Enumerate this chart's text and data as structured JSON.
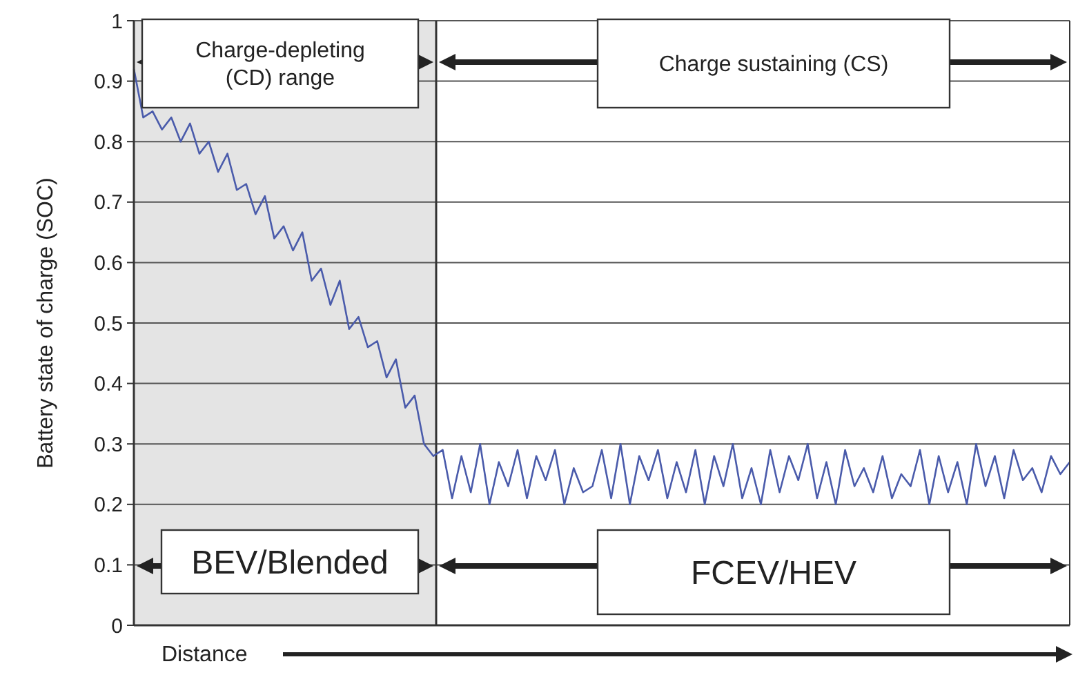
{
  "chart_data": {
    "type": "line",
    "xlabel": "Distance",
    "ylabel": "Battery state of charge (SOC)",
    "ylim": [
      0,
      1
    ],
    "yticks": [
      0,
      0.1,
      0.2,
      0.3,
      0.4,
      0.5,
      0.6,
      0.7,
      0.8,
      0.9,
      1
    ],
    "grid": "y",
    "categories": [
      null,
      null,
      null,
      null,
      null,
      null,
      null,
      null,
      null,
      null,
      null,
      null,
      null,
      null,
      null,
      null,
      null,
      null,
      null,
      null,
      null,
      null,
      null,
      null,
      null,
      null,
      null,
      null,
      null,
      null,
      null,
      null,
      null,
      null,
      null,
      null,
      null,
      null,
      null,
      null,
      null,
      null,
      null,
      null,
      null,
      null,
      null,
      null,
      null,
      null,
      null,
      null,
      null,
      null,
      null,
      null,
      null,
      null,
      null,
      null,
      null,
      null,
      null,
      null,
      null,
      null,
      null,
      null,
      null,
      null,
      null,
      null,
      null,
      null,
      null,
      null,
      null,
      null,
      null,
      null,
      null,
      null,
      null,
      null,
      null,
      null,
      null,
      null,
      null,
      null,
      null,
      null,
      null,
      null,
      null,
      null,
      null,
      null,
      null,
      null,
      null
    ],
    "series": [
      {
        "color": "#4a5bab",
        "values": [
          0.92,
          0.84,
          0.85,
          0.82,
          0.84,
          0.8,
          0.83,
          0.78,
          0.8,
          0.75,
          0.78,
          0.72,
          0.73,
          0.68,
          0.71,
          0.64,
          0.66,
          0.62,
          0.65,
          0.57,
          0.59,
          0.53,
          0.57,
          0.49,
          0.51,
          0.46,
          0.47,
          0.41,
          0.44,
          0.36,
          0.38,
          0.3,
          0.28,
          0.29,
          0.21,
          0.28,
          0.22,
          0.3,
          0.2,
          0.27,
          0.23,
          0.29,
          0.21,
          0.28,
          0.24,
          0.29,
          0.2,
          0.26,
          0.22,
          0.23,
          0.29,
          0.21,
          0.3,
          0.2,
          0.28,
          0.24,
          0.29,
          0.21,
          0.27,
          0.22,
          0.29,
          0.2,
          0.28,
          0.23,
          0.3,
          0.21,
          0.26,
          0.2,
          0.29,
          0.22,
          0.28,
          0.24,
          0.3,
          0.21,
          0.27,
          0.2,
          0.29,
          0.23,
          0.26,
          0.22,
          0.28,
          0.21,
          0.25,
          0.23,
          0.29,
          0.2,
          0.28,
          0.22,
          0.27,
          0.2,
          0.3,
          0.23,
          0.28,
          0.21,
          0.29,
          0.24,
          0.26,
          0.22,
          0.28,
          0.25,
          0.27
        ]
      }
    ],
    "annotations": [
      "Charge-depleting (CD) range",
      "Charge sustaining (CS)",
      "BEV/Blended",
      "FCEV/HEV"
    ]
  }
}
